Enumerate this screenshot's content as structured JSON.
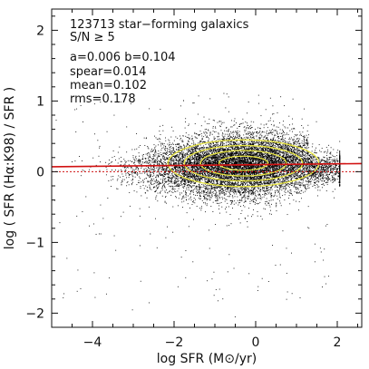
{
  "chart_data": {
    "type": "scatter",
    "title": "",
    "xlabel": "log SFR (M⊙/yr)",
    "ylabel": "log ( SFR (Hα:K98) / SFR )",
    "xlim": [
      -5,
      2.6
    ],
    "ylim": [
      -2.2,
      2.3
    ],
    "x_ticks": [
      -4,
      -2,
      0,
      2
    ],
    "x_tick_labels": [
      "−4",
      "−2",
      "0",
      "2"
    ],
    "y_ticks": [
      -2,
      -1,
      0,
      1,
      2
    ],
    "y_tick_labels": [
      "−2",
      "−1",
      "0",
      "1",
      "2"
    ],
    "grid": false,
    "legend": "none",
    "annotations": [
      "123713 star−forming galaxics",
      "S/N ≥ 5",
      "a=0.006    b=0.104",
      "spear=0.014",
      "mean=0.102",
      "rms=0.178"
    ],
    "series": [
      {
        "kind": "points",
        "color": "#000000",
        "count": 123713,
        "x_range": [
          -5,
          2.0
        ],
        "y_range": [
          -2.05,
          1.1
        ],
        "core_center": [
          0,
          0.1
        ]
      },
      {
        "kind": "line",
        "color": "#d11111",
        "x": [
          -5,
          2.6
        ],
        "y": [
          0.07,
          0.115
        ]
      },
      {
        "kind": "line",
        "color": "#d11111",
        "style": "dashed",
        "x": [
          -5,
          2.6
        ],
        "y": [
          0.0,
          0.0
        ]
      },
      {
        "kind": "contours",
        "color": "#e7e442",
        "center": [
          -0.3,
          0.12
        ],
        "levels": [
          {
            "half_width_x": 1.85,
            "half_height_y": 0.33
          },
          {
            "half_width_x": 1.45,
            "half_height_y": 0.25
          },
          {
            "half_width_x": 1.05,
            "half_height_y": 0.18
          },
          {
            "half_width_x": 0.6,
            "half_height_y": 0.1
          }
        ]
      }
    ]
  }
}
